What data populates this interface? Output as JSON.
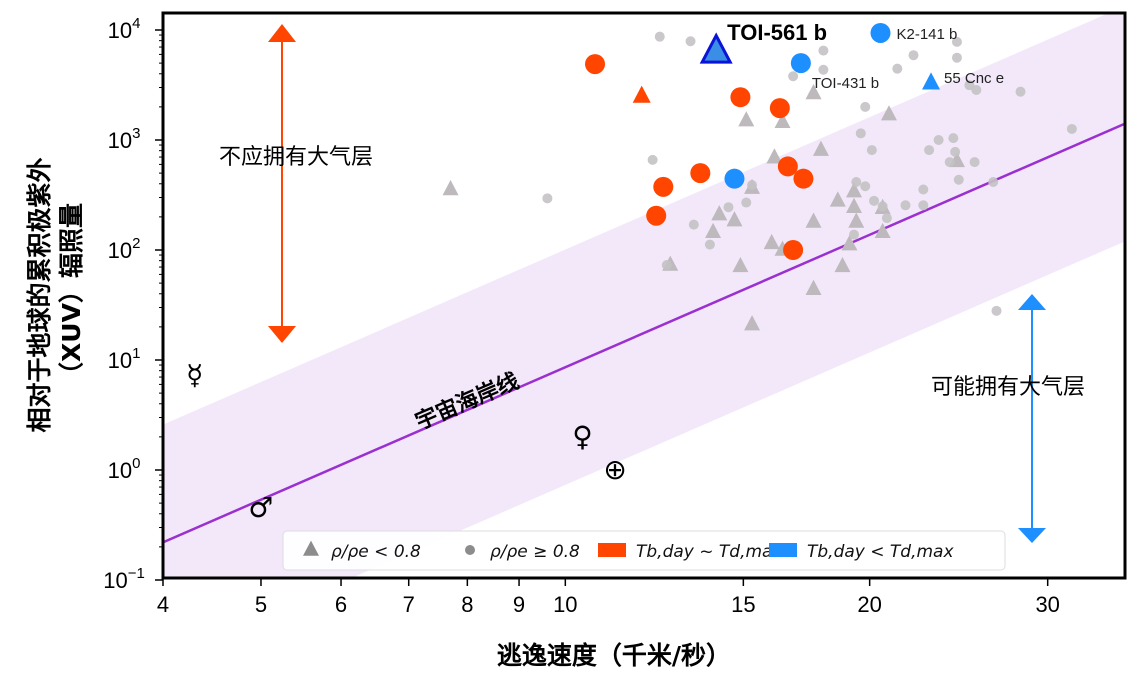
{
  "chart_data": {
    "type": "scatter",
    "xlabel": "逃逸速度（千米/秒）",
    "ylabel_lines": [
      "相对于地球的累积极紫外",
      "（XUV）辐照量"
    ],
    "xscale": "log",
    "yscale": "log",
    "xlim": [
      4,
      35.8
    ],
    "ylim": [
      0.1,
      14000
    ],
    "x_ticks": [
      4,
      5,
      6,
      7,
      8,
      9,
      10,
      15,
      20,
      30
    ],
    "x_tick_labels": [
      "4",
      "5",
      "6",
      "7",
      "8",
      "9",
      "10",
      "15",
      "20",
      "30"
    ],
    "y_ticks": [
      0.1,
      1,
      10,
      100,
      1000,
      10000
    ],
    "y_tick_labels": [
      [
        "10",
        "−1"
      ],
      [
        "10",
        "0"
      ],
      [
        "10",
        "1"
      ],
      [
        "10",
        "2"
      ],
      [
        "10",
        "3"
      ],
      [
        "10",
        "4"
      ]
    ],
    "shoreline": {
      "label": "宇宙海岸线",
      "intercept_at_4": 0.22,
      "power": 4,
      "band_dex": 1.07,
      "color": "#9b30d0",
      "band_color": "#f3e8fa"
    },
    "annotations": {
      "no_atmosphere": "不应拥有大气层",
      "may_have_atmosphere": "可能拥有大气层"
    },
    "arrow_colors": {
      "up": "#ff4500",
      "down": "#1e8fff"
    },
    "series": [
      {
        "name": "rho_low_gray",
        "marker": "triangle",
        "color": "#bdb9bd",
        "points": [
          [
            7.7,
            355
          ],
          [
            15.1,
            1500
          ],
          [
            16.4,
            1450
          ],
          [
            16.1,
            690
          ],
          [
            17.9,
            810
          ],
          [
            17.6,
            2650
          ],
          [
            15.3,
            365
          ],
          [
            20.9,
            1700
          ],
          [
            14.2,
            210
          ],
          [
            14.0,
            145
          ],
          [
            14.7,
            185
          ],
          [
            16.0,
            115
          ],
          [
            16.4,
            100
          ],
          [
            14.9,
            71
          ],
          [
            17.6,
            180
          ],
          [
            18.6,
            280
          ],
          [
            19.3,
            245
          ],
          [
            19.3,
            340
          ],
          [
            19.4,
            180
          ],
          [
            20.6,
            240
          ],
          [
            20.6,
            145
          ],
          [
            19.1,
            112
          ],
          [
            18.8,
            71
          ],
          [
            17.6,
            44
          ],
          [
            12.7,
            73
          ],
          [
            15.3,
            21
          ],
          [
            24.4,
            640
          ]
        ]
      },
      {
        "name": "rho_high_gray",
        "marker": "circle",
        "color": "#c4c2c4",
        "points": [
          [
            12.4,
            8700
          ],
          [
            13.3,
            7900
          ],
          [
            18.0,
            6500
          ],
          [
            16.8,
            3800
          ],
          [
            18.0,
            4350
          ],
          [
            21.3,
            4450
          ],
          [
            22.1,
            5900
          ],
          [
            24.4,
            7800
          ],
          [
            24.4,
            5600
          ],
          [
            25.1,
            3150
          ],
          [
            25.5,
            2850
          ],
          [
            28.2,
            2750
          ],
          [
            19.8,
            2000
          ],
          [
            19.6,
            1150
          ],
          [
            20.1,
            810
          ],
          [
            23.4,
            1000
          ],
          [
            22.9,
            810
          ],
          [
            24.2,
            1040
          ],
          [
            24.3,
            780
          ],
          [
            24.0,
            630
          ],
          [
            25.4,
            630
          ],
          [
            24.5,
            435
          ],
          [
            26.5,
            415
          ],
          [
            31.7,
            1260
          ],
          [
            19.4,
            415
          ],
          [
            19.8,
            380
          ],
          [
            20.2,
            280
          ],
          [
            20.6,
            250
          ],
          [
            20.8,
            195
          ],
          [
            21.7,
            255
          ],
          [
            22.6,
            255
          ],
          [
            22.6,
            355
          ],
          [
            19.3,
            138
          ],
          [
            9.6,
            295
          ],
          [
            12.2,
            660
          ],
          [
            15.3,
            390
          ],
          [
            15.1,
            270
          ],
          [
            14.5,
            245
          ],
          [
            13.4,
            170
          ],
          [
            13.9,
            112
          ],
          [
            12.6,
            73
          ],
          [
            26.7,
            28
          ]
        ]
      },
      {
        "name": "Tb_day ~ Td_max",
        "marker": "circle",
        "color": "#ff4500",
        "points": [
          [
            10.7,
            4900
          ],
          [
            14.9,
            2450
          ],
          [
            16.3,
            1950
          ],
          [
            13.6,
            500
          ],
          [
            12.5,
            375
          ],
          [
            12.3,
            205
          ],
          [
            16.6,
            575
          ],
          [
            17.2,
            445
          ],
          [
            16.8,
            100
          ]
        ]
      },
      {
        "name": "Tb_day ~ Td_max triangle",
        "marker": "triangle",
        "color": "#ff4500",
        "points": [
          [
            11.9,
            2500
          ]
        ]
      },
      {
        "name": "Tb_day < Td_max",
        "marker": "circle",
        "color": "#1e8fff",
        "points": [
          [
            14.7,
            445
          ],
          [
            20.5,
            9400
          ],
          [
            17.1,
            5000
          ]
        ]
      },
      {
        "name": "Tb_day < Td_max triangle",
        "marker": "triangle",
        "color": "#1e8fff",
        "points": [
          [
            23.0,
            3300
          ]
        ]
      }
    ],
    "highlight": {
      "label": "TOI-561 b",
      "x": 14.1,
      "y": 6300,
      "color": "#3a8ee6",
      "stroke": "#0a14d8"
    },
    "planet_labels": [
      {
        "text": "K2-141 b",
        "x": 20.5,
        "y": 9400
      },
      {
        "text": "TOI-431 b",
        "x": 17.1,
        "y": 5000
      },
      {
        "text": "55 Cnc e",
        "x": 23.0,
        "y": 3300
      }
    ],
    "solar_system": [
      {
        "name": "mercury",
        "symbol": "☿",
        "x": 4.3,
        "y": 7.2
      },
      {
        "name": "venus",
        "symbol": "♀",
        "x": 10.4,
        "y": 2.0
      },
      {
        "name": "earth",
        "symbol": "⊕",
        "x": 11.2,
        "y": 1.0
      },
      {
        "name": "mars",
        "symbol": "♂",
        "x": 5.0,
        "y": 0.45
      }
    ],
    "legend": {
      "placement": "bottom-center",
      "items": [
        {
          "marker": "triangle",
          "color": "#8c8c8c",
          "label": "ρ/ρe < 0.8"
        },
        {
          "marker": "circle",
          "color": "#8c8c8c",
          "label": "ρ/ρe ≥ 0.8"
        },
        {
          "marker": "rect",
          "color": "#ff4500",
          "label": "Tb,day ~ Td,max"
        },
        {
          "marker": "rect",
          "color": "#1e8fff",
          "label": "Tb,day < Td,max"
        }
      ]
    }
  }
}
